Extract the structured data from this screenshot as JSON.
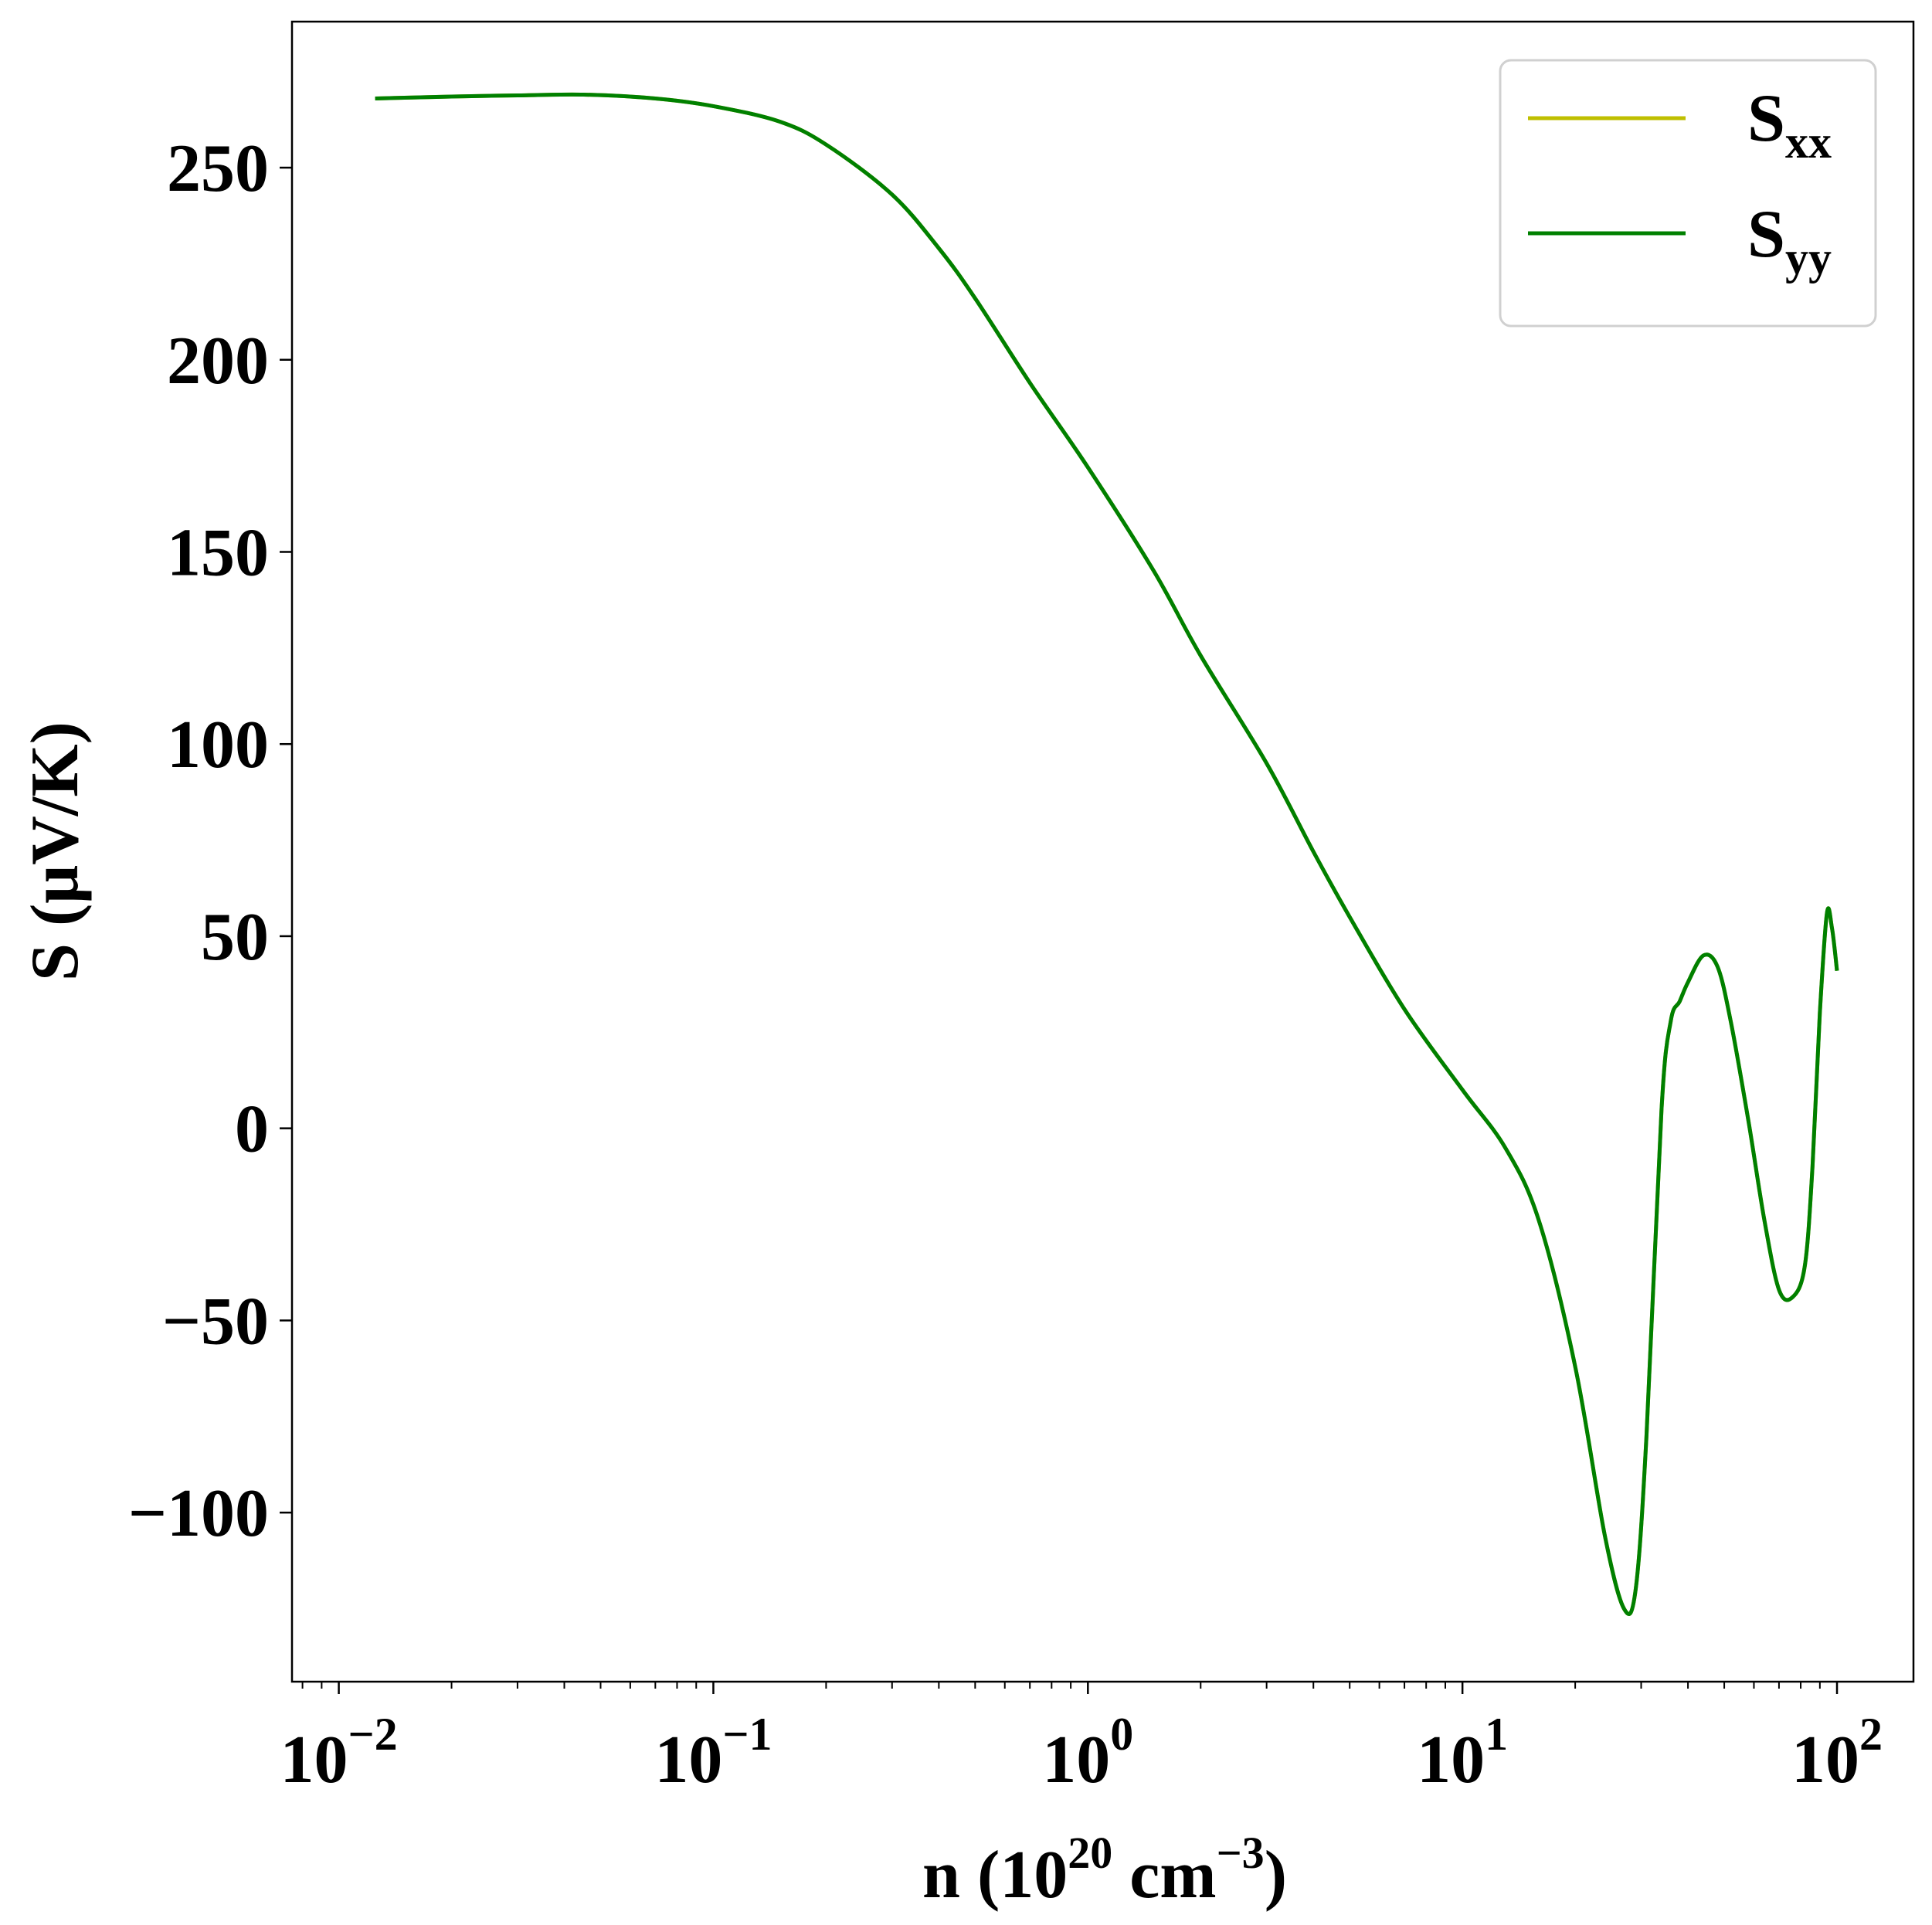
{
  "chart_data": {
    "type": "line",
    "xlabel": {
      "prefix": "n (10",
      "sup1": "20",
      "mid": " cm",
      "sup2": "−3",
      "suffix": ")"
    },
    "ylabel": "S (μV/K)",
    "xscale": "log",
    "xlim": [
      0.0075,
      160
    ],
    "ylim": [
      -144,
      288
    ],
    "grid": false,
    "legend_position": "top-right",
    "xticks": [
      {
        "value": 0.01,
        "base": "10",
        "exp": "−2"
      },
      {
        "value": 0.1,
        "base": "10",
        "exp": "−1"
      },
      {
        "value": 1,
        "base": "10",
        "exp": "0"
      },
      {
        "value": 10,
        "base": "10",
        "exp": "1"
      },
      {
        "value": 100,
        "base": "10",
        "exp": "2"
      }
    ],
    "yticks": [
      {
        "value": 250,
        "label": "250"
      },
      {
        "value": 200,
        "label": "200"
      },
      {
        "value": 150,
        "label": "150"
      },
      {
        "value": 100,
        "label": "100"
      },
      {
        "value": 50,
        "label": "50"
      },
      {
        "value": 0,
        "label": "0"
      },
      {
        "value": -50,
        "label": "−50"
      },
      {
        "value": -100,
        "label": "−100"
      }
    ],
    "series": [
      {
        "name": {
          "base": "S",
          "sub": "xx"
        },
        "color": "#bfbf00",
        "x": [
          0.0125,
          0.02,
          0.03,
          0.045,
          0.07,
          0.1,
          0.15,
          0.2,
          0.3,
          0.4,
          0.5,
          0.7,
          1.0,
          1.5,
          2.0,
          3.0,
          4.0,
          5.0,
          7.0,
          10,
          13,
          16,
          20,
          24,
          27,
          29,
          31,
          34,
          36,
          38,
          40,
          44,
          48,
          52,
          58,
          64,
          70,
          76,
          82,
          86,
          90,
          94,
          97,
          100
        ],
        "y": [
          268,
          268.5,
          268.8,
          269,
          268,
          266,
          262,
          256,
          243,
          229,
          216,
          194,
          172,
          145,
          123,
          95,
          72,
          55,
          31,
          10,
          -5,
          -24,
          -62,
          -106,
          -125,
          -120,
          -80,
          5,
          28,
          33,
          38,
          45,
          42,
          28,
          2,
          -24,
          -42,
          -44,
          -36,
          -10,
          30,
          56,
          52,
          41
        ]
      },
      {
        "name": {
          "base": "S",
          "sub": "yy"
        },
        "color": "#008000",
        "x": [
          0.0125,
          0.02,
          0.03,
          0.045,
          0.07,
          0.1,
          0.15,
          0.2,
          0.3,
          0.4,
          0.5,
          0.7,
          1.0,
          1.5,
          2.0,
          3.0,
          4.0,
          5.0,
          7.0,
          10,
          13,
          16,
          20,
          24,
          27,
          29,
          31,
          34,
          36,
          38,
          40,
          44,
          48,
          52,
          58,
          64,
          70,
          76,
          82,
          86,
          90,
          94,
          97,
          100
        ],
        "y": [
          268,
          268.5,
          268.8,
          269,
          268,
          266,
          262,
          256,
          243,
          229,
          216,
          194,
          172,
          145,
          123,
          95,
          72,
          55,
          31,
          10,
          -5,
          -24,
          -62,
          -106,
          -125,
          -120,
          -80,
          5,
          28,
          33,
          38,
          45,
          42,
          28,
          2,
          -24,
          -42,
          -44,
          -36,
          -10,
          30,
          56,
          52,
          41
        ]
      }
    ]
  }
}
